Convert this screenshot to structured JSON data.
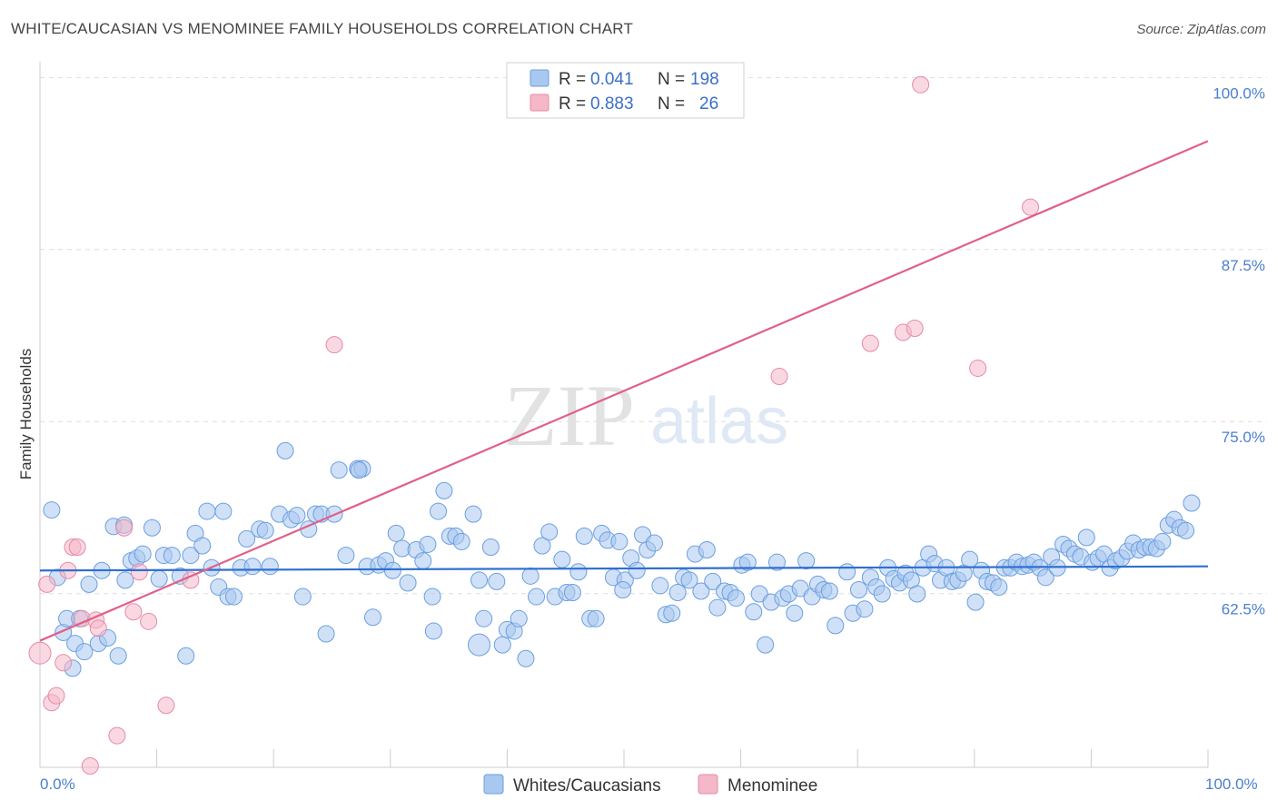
{
  "header": {
    "title": "WHITE/CAUCASIAN VS MENOMINEE FAMILY HOUSEHOLDS CORRELATION CHART",
    "source": "Source: ZipAtlas.com"
  },
  "legend": {
    "rows": [
      {
        "r_label": "R = ",
        "r_value": "0.041",
        "n_label": "N = ",
        "n_value": "198",
        "color": "#a9c8f0"
      },
      {
        "r_label": "R = ",
        "r_value": "0.883",
        "n_label": "N = ",
        "n_value": "26",
        "color": "#f5b8c8"
      }
    ]
  },
  "watermark": {
    "zip": "ZIP",
    "atlas": "atlas"
  },
  "chart_data": {
    "type": "scatter",
    "title": "WHITE/CAUCASIAN VS MENOMINEE FAMILY HOUSEHOLDS CORRELATION CHART",
    "xlabel": "",
    "ylabel": "Family Households",
    "xlim": [
      0,
      100
    ],
    "ylim": [
      51,
      102
    ],
    "x_tick_labels": {
      "left": "0.0%",
      "right": "100.0%"
    },
    "y_ticks": [
      {
        "value": 100.0,
        "label": "100.0%"
      },
      {
        "value": 87.5,
        "label": "87.5%"
      },
      {
        "value": 75.0,
        "label": "75.0%"
      },
      {
        "value": 62.5,
        "label": "62.5%"
      }
    ],
    "grid": true,
    "legend_position": "top-center",
    "series": [
      {
        "name": "Whites/Caucasians",
        "color": "#a9c8f0",
        "stroke": "#6a9ee0",
        "trend": {
          "x0": 0,
          "y0": 65.3,
          "x1": 100,
          "y1": 65.6,
          "color": "#2f6fd0"
        },
        "points": [
          [
            1,
            69.7
          ],
          [
            1.5,
            64.8
          ],
          [
            2,
            60.8
          ],
          [
            2.3,
            61.8
          ],
          [
            2.8,
            58.2
          ],
          [
            3,
            60
          ],
          [
            3.4,
            61.8
          ],
          [
            3.8,
            59.4
          ],
          [
            4.2,
            64.3
          ],
          [
            5,
            60
          ],
          [
            5.3,
            65.3
          ],
          [
            5.8,
            60.4
          ],
          [
            6.3,
            68.5
          ],
          [
            6.7,
            59.1
          ],
          [
            7.3,
            64.6
          ],
          [
            7.8,
            66
          ],
          [
            8.3,
            66.2
          ],
          [
            8.8,
            66.5
          ],
          [
            9.6,
            68.4
          ],
          [
            10.2,
            64.7
          ],
          [
            10.6,
            66.4
          ],
          [
            11.3,
            66.4
          ],
          [
            12,
            64.9
          ],
          [
            12.5,
            59.1
          ],
          [
            12.9,
            66.4
          ],
          [
            13.3,
            68
          ],
          [
            13.9,
            67.1
          ],
          [
            14.3,
            69.6
          ],
          [
            14.7,
            65.5
          ],
          [
            15.3,
            64.1
          ],
          [
            15.7,
            69.6
          ],
          [
            16.1,
            63.4
          ],
          [
            16.6,
            63.4
          ],
          [
            17.2,
            65.5
          ],
          [
            17.7,
            67.6
          ],
          [
            18.2,
            65.6
          ],
          [
            18.8,
            68.3
          ],
          [
            19.3,
            68.2
          ],
          [
            19.7,
            65.6
          ],
          [
            20.5,
            69.4
          ],
          [
            21,
            74
          ],
          [
            21.5,
            69
          ],
          [
            22,
            69.3
          ],
          [
            22.5,
            63.4
          ],
          [
            23,
            68.3
          ],
          [
            23.6,
            69.4
          ],
          [
            24.1,
            69.4
          ],
          [
            24.5,
            60.7
          ],
          [
            25.2,
            69.4
          ],
          [
            25.6,
            72.6
          ],
          [
            26.2,
            66.4
          ],
          [
            27.2,
            72.7
          ],
          [
            27.6,
            72.7
          ],
          [
            28,
            65.6
          ],
          [
            28.5,
            61.9
          ],
          [
            29,
            65.7
          ],
          [
            29.6,
            66
          ],
          [
            30.2,
            65.3
          ],
          [
            30.5,
            68
          ],
          [
            31,
            66.9
          ],
          [
            31.5,
            64.4
          ],
          [
            32.2,
            66.8
          ],
          [
            32.8,
            66
          ],
          [
            33.2,
            67.2
          ],
          [
            33.6,
            63.4
          ],
          [
            34.1,
            69.6
          ],
          [
            34.6,
            71.1
          ],
          [
            35.1,
            67.8
          ],
          [
            35.6,
            67.8
          ],
          [
            36.1,
            67.4
          ],
          [
            37.1,
            69.4
          ],
          [
            37.6,
            64.6
          ],
          [
            38,
            61.8
          ],
          [
            38.6,
            67
          ],
          [
            39.1,
            64.5
          ],
          [
            39.6,
            59.9
          ],
          [
            40,
            61
          ],
          [
            40.6,
            60.9
          ],
          [
            41,
            61.8
          ],
          [
            41.6,
            58.9
          ],
          [
            42,
            64.9
          ],
          [
            42.5,
            63.4
          ],
          [
            43,
            67.1
          ],
          [
            43.6,
            68.1
          ],
          [
            44.1,
            63.4
          ],
          [
            44.7,
            66.1
          ],
          [
            45.1,
            63.7
          ],
          [
            45.6,
            63.7
          ],
          [
            46.1,
            65.2
          ],
          [
            46.6,
            67.8
          ],
          [
            47.1,
            61.8
          ],
          [
            47.6,
            61.8
          ],
          [
            48.1,
            68
          ],
          [
            48.6,
            67.5
          ],
          [
            49.1,
            64.8
          ],
          [
            49.6,
            67.4
          ],
          [
            50.1,
            64.6
          ],
          [
            50.6,
            66.2
          ],
          [
            51.1,
            65.3
          ],
          [
            51.6,
            67.9
          ],
          [
            52,
            66.8
          ],
          [
            52.6,
            67.3
          ],
          [
            53.1,
            64.2
          ],
          [
            53.6,
            62.1
          ],
          [
            54.1,
            62.2
          ],
          [
            54.6,
            63.7
          ],
          [
            55.1,
            64.8
          ],
          [
            55.6,
            64.6
          ],
          [
            56.1,
            66.5
          ],
          [
            56.6,
            63.8
          ],
          [
            57.1,
            66.8
          ],
          [
            57.6,
            64.5
          ],
          [
            58,
            62.6
          ],
          [
            58.6,
            63.8
          ],
          [
            59.1,
            63.7
          ],
          [
            59.6,
            63.3
          ],
          [
            60.1,
            65.7
          ],
          [
            60.6,
            65.9
          ],
          [
            61.1,
            62.3
          ],
          [
            61.6,
            63.6
          ],
          [
            62.1,
            59.9
          ],
          [
            62.6,
            63
          ],
          [
            63.1,
            65.9
          ],
          [
            63.6,
            63.3
          ],
          [
            64.1,
            63.6
          ],
          [
            64.6,
            62.2
          ],
          [
            65.1,
            64
          ],
          [
            65.6,
            66
          ],
          [
            66.1,
            63.4
          ],
          [
            66.6,
            64.3
          ],
          [
            67.1,
            63.9
          ],
          [
            67.6,
            63.8
          ],
          [
            68.1,
            61.3
          ],
          [
            69.1,
            65.2
          ],
          [
            69.6,
            62.2
          ],
          [
            70.1,
            63.9
          ],
          [
            70.6,
            62.5
          ],
          [
            71.1,
            64.8
          ],
          [
            71.6,
            64.1
          ],
          [
            72.1,
            63.6
          ],
          [
            72.6,
            65.5
          ],
          [
            73.1,
            64.7
          ],
          [
            73.6,
            64.4
          ],
          [
            74.1,
            65.1
          ],
          [
            74.6,
            64.6
          ],
          [
            75.1,
            63.6
          ],
          [
            75.6,
            65.5
          ],
          [
            76.1,
            66.5
          ],
          [
            76.6,
            65.8
          ],
          [
            77.1,
            64.6
          ],
          [
            77.6,
            65.5
          ],
          [
            78.1,
            64.5
          ],
          [
            78.6,
            64.6
          ],
          [
            79.1,
            65.1
          ],
          [
            79.6,
            66.1
          ],
          [
            80.1,
            63
          ],
          [
            80.6,
            65.3
          ],
          [
            81.1,
            64.5
          ],
          [
            81.6,
            64.4
          ],
          [
            82.1,
            64.1
          ],
          [
            82.6,
            65.5
          ],
          [
            83.1,
            65.5
          ],
          [
            83.6,
            65.9
          ],
          [
            84.1,
            65.6
          ],
          [
            84.6,
            65.7
          ],
          [
            85.1,
            65.9
          ],
          [
            85.6,
            65.5
          ],
          [
            86.1,
            64.8
          ],
          [
            86.6,
            66.3
          ],
          [
            87.1,
            65.5
          ],
          [
            87.6,
            67.2
          ],
          [
            88.1,
            66.9
          ],
          [
            88.6,
            66.5
          ],
          [
            89.1,
            66.3
          ],
          [
            89.6,
            67.7
          ],
          [
            90.1,
            65.9
          ],
          [
            90.6,
            66.2
          ],
          [
            91.1,
            66.5
          ],
          [
            91.6,
            65.5
          ],
          [
            92.1,
            66
          ],
          [
            92.6,
            66.2
          ],
          [
            93.1,
            66.7
          ],
          [
            93.6,
            67.3
          ],
          [
            94.1,
            66.8
          ],
          [
            94.6,
            67
          ],
          [
            95.1,
            67
          ],
          [
            95.6,
            66.9
          ],
          [
            96.1,
            67.4
          ],
          [
            96.6,
            68.6
          ],
          [
            97.1,
            69
          ],
          [
            97.6,
            68.4
          ],
          [
            98.1,
            68.2
          ],
          [
            98.6,
            70.2
          ],
          [
            7.2,
            68.6
          ],
          [
            27.3,
            72.6
          ],
          [
            49.9,
            63.9
          ],
          [
            33.7,
            60.9
          ]
        ],
        "large_points": [
          [
            37.6,
            59.9
          ]
        ]
      },
      {
        "name": "Menominee",
        "color": "#f5b8c8",
        "stroke": "#e58aa6",
        "trend": {
          "x0": 0,
          "y0": 60.2,
          "x1": 100,
          "y1": 96.5,
          "color": "#e0608a"
        },
        "points": [
          [
            0.6,
            64.3
          ],
          [
            1,
            55.7
          ],
          [
            1.4,
            56.2
          ],
          [
            2,
            58.6
          ],
          [
            2.4,
            65.3
          ],
          [
            2.8,
            67
          ],
          [
            3.2,
            67
          ],
          [
            3.6,
            61.8
          ],
          [
            4.3,
            51.1
          ],
          [
            4.8,
            61.7
          ],
          [
            5,
            61.1
          ],
          [
            6.6,
            53.3
          ],
          [
            7.2,
            68.4
          ],
          [
            8,
            62.3
          ],
          [
            8.5,
            65.2
          ],
          [
            9.3,
            61.6
          ],
          [
            10.8,
            55.5
          ],
          [
            12.9,
            64.6
          ],
          [
            25.2,
            81.7
          ],
          [
            63.3,
            79.4
          ],
          [
            71.1,
            81.8
          ],
          [
            73.9,
            82.6
          ],
          [
            74.9,
            82.9
          ],
          [
            75.4,
            100.6
          ],
          [
            80.3,
            80
          ],
          [
            84.8,
            91.7
          ]
        ],
        "large_points": [
          [
            0,
            59.3
          ]
        ]
      }
    ],
    "bottom_legend": [
      "Whites/Caucasians",
      "Menominee"
    ]
  }
}
